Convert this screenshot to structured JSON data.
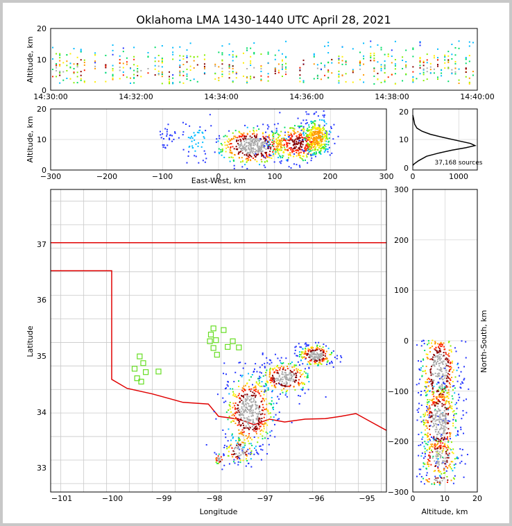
{
  "title": "Oklahoma LMA 1430-1440 UTC April 28, 2021",
  "colors": {
    "state_border": "#e00000",
    "county_lines": "#c8c8c8",
    "stations": "#66dd22",
    "grid": "#e0e0e0"
  },
  "panels": {
    "time_height": {
      "ylabel": "Altitude, km",
      "yticks": [
        "0",
        "10",
        "20"
      ],
      "xticks": [
        "14:30:00",
        "14:32:00",
        "14:34:00",
        "14:36:00",
        "14:38:00",
        "14:40:00"
      ]
    },
    "ew_height": {
      "ylabel": "Altitude, km",
      "xlabel": "East-West, km",
      "yticks": [
        "0",
        "10",
        "20"
      ],
      "xticks": [
        "−300",
        "−200",
        "−100",
        "0",
        "100",
        "200",
        "300"
      ]
    },
    "histogram": {
      "yticks": [
        "0",
        "10",
        "20"
      ],
      "xticks": [
        "0",
        "1000"
      ],
      "label": "37,168 sources"
    },
    "plan_view": {
      "ylabel": "Latitude",
      "xlabel": "Longitude",
      "yticks": [
        "33",
        "34",
        "35",
        "36",
        "37"
      ],
      "xticks": [
        "−101",
        "−100",
        "−99",
        "−98",
        "−97",
        "−96",
        "−95"
      ]
    },
    "ns_height": {
      "ylabel": "North-South, km",
      "xlabel": "Altitude, km",
      "yticks": [
        "300",
        "200",
        "100",
        "0",
        "−100",
        "−200",
        "−300"
      ],
      "xticks": [
        "0",
        "10",
        "20"
      ]
    }
  },
  "chart_data": [
    {
      "type": "scatter",
      "panel": "time_height",
      "xlabel": "",
      "ylabel": "Altitude, km",
      "xlim": [
        "14:30:00",
        "14:40:00"
      ],
      "ylim": [
        0,
        20
      ],
      "description_of_points": "VHF source density vs. time, sources between about 2 and 15 km, densest 5-11 km",
      "density_profile": {
        "alt_km": [
          2,
          4,
          6,
          8,
          10,
          12,
          14,
          16,
          18
        ],
        "relative": [
          0.15,
          0.5,
          0.85,
          1.0,
          0.8,
          0.45,
          0.2,
          0.08,
          0.04
        ]
      }
    },
    {
      "type": "scatter",
      "panel": "ew_height",
      "xlabel": "East-West, km",
      "ylabel": "Altitude, km",
      "xlim": [
        -300,
        300
      ],
      "ylim": [
        0,
        20
      ],
      "clusters": [
        {
          "x_center": 60,
          "x_spread": 30,
          "alt_center": 8,
          "alt_spread": 3,
          "weight": 1.0
        },
        {
          "x_center": 140,
          "x_spread": 25,
          "alt_center": 9,
          "alt_spread": 3,
          "weight": 0.8
        },
        {
          "x_center": 175,
          "x_spread": 12,
          "alt_center": 11,
          "alt_spread": 3,
          "weight": 0.6
        },
        {
          "x_center": -40,
          "x_spread": 15,
          "alt_center": 10,
          "alt_spread": 4,
          "weight": 0.08
        },
        {
          "x_center": -90,
          "x_spread": 10,
          "alt_center": 11,
          "alt_spread": 3,
          "weight": 0.04
        }
      ]
    },
    {
      "type": "line",
      "panel": "histogram",
      "xlabel": "",
      "ylabel": "",
      "xlim": [
        0,
        1400
      ],
      "ylim": [
        0,
        20
      ],
      "x": [
        0,
        30,
        120,
        300,
        550,
        850,
        1150,
        1350,
        1250,
        950,
        650,
        380,
        200,
        90,
        40,
        15,
        0
      ],
      "y": [
        1.5,
        2,
        3,
        4.5,
        5.5,
        6.5,
        7.3,
        8,
        8.7,
        9.7,
        10.7,
        11.7,
        12.7,
        13.7,
        15,
        17,
        18
      ]
    },
    {
      "type": "scatter",
      "panel": "plan_view",
      "xlabel": "Longitude",
      "ylabel": "Latitude",
      "xlim": [
        -101.2,
        -94.6
      ],
      "ylim": [
        32.55,
        37.95
      ],
      "stations": [
        {
          "lon": -99.55,
          "lat": 34.75
        },
        {
          "lon": -99.45,
          "lat": 34.97
        },
        {
          "lon": -99.38,
          "lat": 34.85
        },
        {
          "lon": -99.5,
          "lat": 34.58
        },
        {
          "lon": -99.42,
          "lat": 34.52
        },
        {
          "lon": -99.33,
          "lat": 34.69
        },
        {
          "lon": -99.08,
          "lat": 34.7
        },
        {
          "lon": -98.0,
          "lat": 35.47
        },
        {
          "lon": -98.05,
          "lat": 35.36
        },
        {
          "lon": -98.07,
          "lat": 35.24
        },
        {
          "lon": -97.95,
          "lat": 35.26
        },
        {
          "lon": -97.8,
          "lat": 35.44
        },
        {
          "lon": -97.62,
          "lat": 35.24
        },
        {
          "lon": -97.72,
          "lat": 35.14
        },
        {
          "lon": -97.5,
          "lat": 35.13
        },
        {
          "lon": -98.0,
          "lat": 35.12
        },
        {
          "lon": -97.93,
          "lat": 35.0
        }
      ]
    },
    {
      "type": "scatter",
      "panel": "ns_height",
      "xlabel": "Altitude, km",
      "ylabel": "North-South, km",
      "xlim": [
        0,
        20
      ],
      "ylim": [
        -300,
        300
      ]
    }
  ]
}
